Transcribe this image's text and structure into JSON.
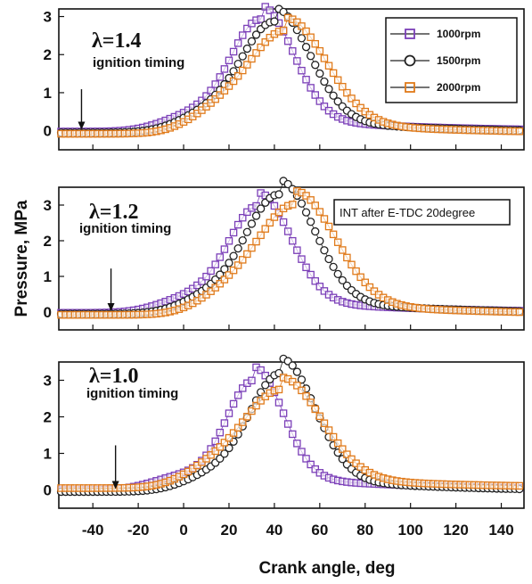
{
  "figure": {
    "xlabel": "Crank angle, deg",
    "ylabel": "Pressure, MPa"
  },
  "legend": {
    "entries": [
      {
        "label": "1000rpm",
        "color": "#7b3fb8",
        "marker": "square"
      },
      {
        "label": "1500rpm",
        "color": "#222222",
        "marker": "circle"
      },
      {
        "label": "2000rpm",
        "color": "#e07a1a",
        "marker": "square"
      }
    ]
  },
  "note": "INT after E-TDC 20degree",
  "chart_data": [
    {
      "type": "scatter",
      "lambda_label": "λ=1.4",
      "annotation": "ignition timing",
      "arrow_x": -45,
      "xlim": [
        -55,
        150
      ],
      "ylim": [
        -0.5,
        3.2
      ],
      "xticks": [
        -40,
        -20,
        0,
        20,
        40,
        60,
        80,
        100,
        120,
        140
      ],
      "xtick_labels": [
        "-40",
        "-20",
        "0",
        "20",
        "40",
        "60",
        "80",
        "100",
        "120",
        "140"
      ],
      "yticks": [
        0,
        1,
        2,
        3
      ],
      "ytick_labels": [
        "0",
        "1",
        "2",
        "3"
      ],
      "series": [
        {
          "name": "1000rpm",
          "peak": 2.95,
          "peak_x": 34,
          "width": 20,
          "base": -0.02
        },
        {
          "name": "1500rpm",
          "peak": 2.92,
          "peak_x": 40,
          "width": 22,
          "base": -0.05
        },
        {
          "name": "2000rpm",
          "peak": 2.72,
          "peak_x": 45,
          "width": 25,
          "base": -0.08
        }
      ]
    },
    {
      "type": "scatter",
      "lambda_label": "λ=1.2",
      "annotation": "ignition timing",
      "arrow_x": -32,
      "xlim": [
        -55,
        150
      ],
      "ylim": [
        -0.5,
        3.5
      ],
      "xticks": [
        -40,
        -20,
        0,
        20,
        40,
        60,
        80,
        100,
        120,
        140
      ],
      "xtick_labels": [
        "-40",
        "-20",
        "0",
        "20",
        "40",
        "60",
        "80",
        "100",
        "120",
        "140"
      ],
      "yticks": [
        0,
        1,
        2,
        3
      ],
      "ytick_labels": [
        "0",
        "1",
        "2",
        "3"
      ],
      "series": [
        {
          "name": "1000rpm",
          "peak": 3.0,
          "peak_x": 33,
          "width": 20,
          "base": -0.02
        },
        {
          "name": "1500rpm",
          "peak": 3.35,
          "peak_x": 42,
          "width": 22,
          "base": -0.05
        },
        {
          "name": "2000rpm",
          "peak": 3.1,
          "peak_x": 49,
          "width": 25,
          "base": -0.08
        }
      ]
    },
    {
      "type": "scatter",
      "lambda_label": "λ=1.0",
      "annotation": "ignition timing",
      "arrow_x": -30,
      "xlim": [
        -55,
        150
      ],
      "ylim": [
        -0.5,
        3.5
      ],
      "xticks": [
        -40,
        -20,
        0,
        20,
        40,
        60,
        80,
        100,
        120,
        140
      ],
      "xtick_labels": [
        "-40",
        "-20",
        "0",
        "20",
        "40",
        "60",
        "80",
        "100",
        "120",
        "140"
      ],
      "yticks": [
        0,
        1,
        2,
        3
      ],
      "ytick_labels": [
        "0",
        "1",
        "2",
        "3"
      ],
      "series": [
        {
          "name": "1000rpm",
          "peak": 3.0,
          "peak_x": 31,
          "width": 18,
          "base": 0.0
        },
        {
          "name": "1500rpm",
          "peak": 3.25,
          "peak_x": 43,
          "width": 21,
          "base": -0.05
        },
        {
          "name": "2000rpm",
          "peak": 2.7,
          "peak_x": 43,
          "width": 25,
          "base": 0.05
        }
      ]
    }
  ]
}
